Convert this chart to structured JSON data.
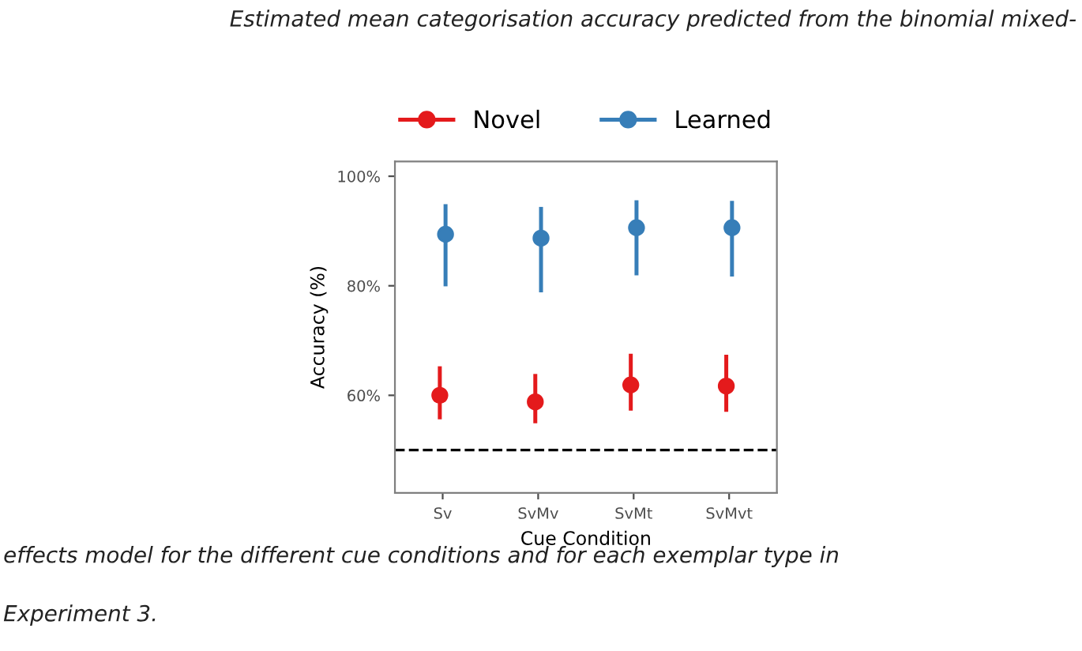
{
  "chart_data": {
    "type": "scatter",
    "title": "Estimated mean categorisation accuracy predicted from the binomial mixed-",
    "annotations": [
      "effects model for the different cue conditions and for each exemplar type in",
      "Experiment 3."
    ],
    "xlabel": "Cue Condition",
    "ylabel": "Accuracy (%)",
    "categories": [
      "Sv",
      "SvMv",
      "SvMt",
      "SvMvt"
    ],
    "series": [
      {
        "name": "Novel",
        "color": "#e41a1c",
        "values": [
          60.0,
          58.8,
          61.9,
          61.7
        ],
        "errors": [
          [
            55.6,
            65.3
          ],
          [
            54.9,
            63.9
          ],
          [
            57.2,
            67.6
          ],
          [
            57.0,
            67.4
          ]
        ]
      },
      {
        "name": "Learned",
        "color": "#377eb8",
        "values": [
          89.4,
          88.7,
          90.6,
          90.6
        ],
        "errors": [
          [
            79.9,
            94.9
          ],
          [
            78.8,
            94.4
          ],
          [
            81.9,
            95.6
          ],
          [
            81.7,
            95.5
          ]
        ]
      }
    ],
    "ylim": [
      42.2,
      102.7
    ],
    "yticks": [
      {
        "value": 60,
        "label": "60%"
      },
      {
        "value": 80,
        "label": "80%"
      },
      {
        "value": 100,
        "label": "100%"
      }
    ],
    "ref_lines": [
      {
        "axis": "y",
        "value": 50,
        "label": null,
        "color": "#000000",
        "line_style": "dashed"
      }
    ],
    "legend": "top",
    "marker": "circle",
    "grid": false
  }
}
